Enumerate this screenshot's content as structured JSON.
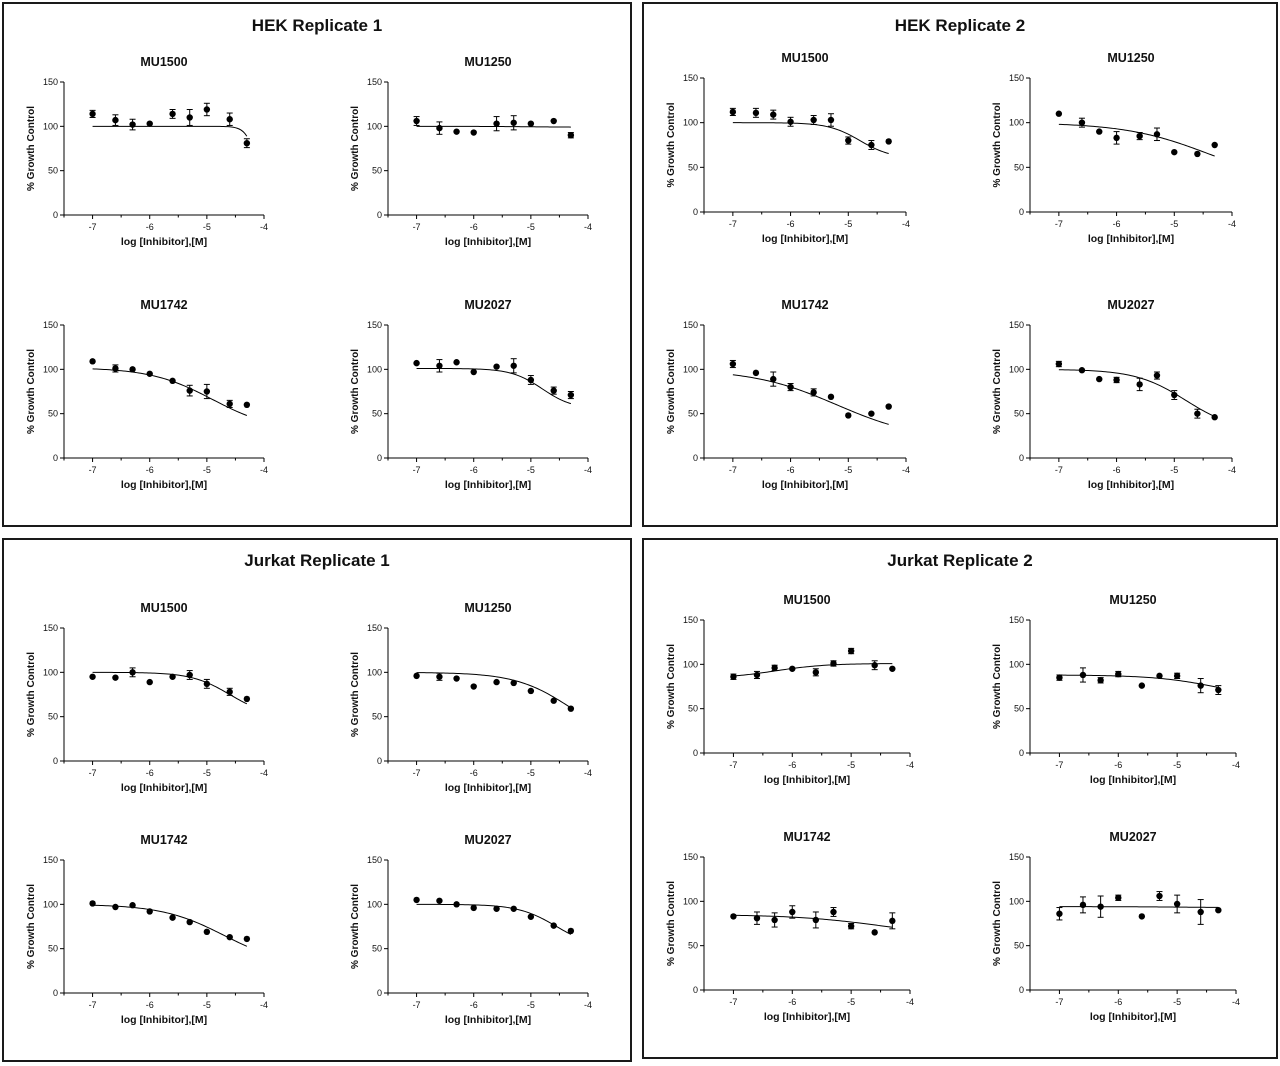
{
  "figure": {
    "background": "#ffffff",
    "line_color": "#000000"
  },
  "panels": [
    {
      "title": "HEK Replicate 1"
    },
    {
      "title": "HEK Replicate 2"
    },
    {
      "title": "Jurkat Replicate 1"
    },
    {
      "title": "Jurkat Replicate 2"
    }
  ],
  "chart_data": [
    {
      "panel": "HEK Replicate 1",
      "type": "scatter",
      "title": "MU1500",
      "xlabel": "log [Inhibitor],[M]",
      "ylabel": "% Growth Control",
      "xlim": [
        -7.5,
        -4
      ],
      "ylim": [
        0,
        150
      ],
      "xticks": [
        -7,
        -6,
        -5,
        -4
      ],
      "yticks": [
        0,
        50,
        100,
        150
      ],
      "x": [
        -7,
        -6.6,
        -6.3,
        -6,
        -5.6,
        -5.3,
        -5,
        -4.6,
        -4.3
      ],
      "y": [
        114,
        107,
        102,
        103,
        114,
        110,
        119,
        108,
        81
      ],
      "err": [
        4,
        6,
        6,
        2,
        5,
        9,
        7,
        7,
        5
      ],
      "fit": {
        "top": 100,
        "bottom": 0,
        "logIC50": -4.1,
        "hill": 4.5
      }
    },
    {
      "panel": "HEK Replicate 1",
      "type": "scatter",
      "title": "MU1250",
      "xlabel": "log [Inhibitor],[M]",
      "ylabel": "% Growth Control",
      "xlim": [
        -7.5,
        -4
      ],
      "ylim": [
        0,
        150
      ],
      "xticks": [
        -7,
        -6,
        -5,
        -4
      ],
      "yticks": [
        0,
        50,
        100,
        150
      ],
      "x": [
        -7,
        -6.6,
        -6.3,
        -6,
        -5.6,
        -5.3,
        -5,
        -4.6,
        -4.3
      ],
      "y": [
        106,
        98,
        94,
        93,
        103,
        104,
        103,
        106,
        90
      ],
      "err": [
        5,
        7,
        2,
        2,
        8,
        8,
        2,
        2,
        3
      ],
      "fit": {
        "top": 100,
        "bottom": 99,
        "logIC50": -5,
        "hill": 1
      }
    },
    {
      "panel": "HEK Replicate 1",
      "type": "scatter",
      "title": "MU1742",
      "xlabel": "log [Inhibitor],[M]",
      "ylabel": "% Growth Control",
      "xlim": [
        -7.5,
        -4
      ],
      "ylim": [
        0,
        150
      ],
      "xticks": [
        -7,
        -6,
        -5,
        -4
      ],
      "yticks": [
        0,
        50,
        100,
        150
      ],
      "x": [
        -7,
        -6.6,
        -6.3,
        -6,
        -5.6,
        -5.3,
        -5,
        -4.6,
        -4.3
      ],
      "y": [
        109,
        101,
        100,
        95,
        87,
        76,
        75,
        61,
        60
      ],
      "err": [
        2,
        4,
        2,
        2,
        2,
        6,
        8,
        4,
        2
      ],
      "fit": {
        "top": 102,
        "bottom": 30,
        "logIC50": -4.9,
        "hill": 0.8
      }
    },
    {
      "panel": "HEK Replicate 1",
      "type": "scatter",
      "title": "MU2027",
      "xlabel": "log [Inhibitor],[M]",
      "ylabel": "% Growth Control",
      "xlim": [
        -7.5,
        -4
      ],
      "ylim": [
        0,
        150
      ],
      "xticks": [
        -7,
        -6,
        -5,
        -4
      ],
      "yticks": [
        0,
        50,
        100,
        150
      ],
      "x": [
        -7,
        -6.6,
        -6.3,
        -6,
        -5.6,
        -5.3,
        -5,
        -4.6,
        -4.3
      ],
      "y": [
        107,
        104,
        108,
        97,
        103,
        104,
        88,
        76,
        71
      ],
      "err": [
        2,
        7,
        2,
        2,
        2,
        8,
        5,
        4,
        4
      ],
      "fit": {
        "top": 101,
        "bottom": 55,
        "logIC50": -4.8,
        "hill": 1.6
      }
    },
    {
      "panel": "HEK Replicate 2",
      "type": "scatter",
      "title": "MU1500",
      "xlabel": "log [Inhibitor],[M]",
      "ylabel": "% Growth Control",
      "xlim": [
        -7.5,
        -4
      ],
      "ylim": [
        0,
        150
      ],
      "xticks": [
        -7,
        -6,
        -5,
        -4
      ],
      "yticks": [
        0,
        50,
        100,
        150
      ],
      "x": [
        -7,
        -6.6,
        -6.3,
        -6,
        -5.6,
        -5.3,
        -5,
        -4.6,
        -4.3
      ],
      "y": [
        112,
        111,
        109,
        101,
        103,
        103,
        80,
        75,
        79
      ],
      "err": [
        4,
        5,
        5,
        5,
        5,
        7,
        4,
        5,
        2
      ],
      "fit": {
        "top": 100,
        "bottom": 60,
        "logIC50": -4.8,
        "hill": 1.6
      }
    },
    {
      "panel": "HEK Replicate 2",
      "type": "scatter",
      "title": "MU1250",
      "xlabel": "log [Inhibitor],[M]",
      "ylabel": "% Growth Control",
      "xlim": [
        -7.5,
        -4
      ],
      "ylim": [
        0,
        150
      ],
      "xticks": [
        -7,
        -6,
        -5,
        -4
      ],
      "yticks": [
        0,
        50,
        100,
        150
      ],
      "x": [
        -7,
        -6.6,
        -6.3,
        -6,
        -5.6,
        -5.3,
        -5,
        -4.6,
        -4.3
      ],
      "y": [
        110,
        100,
        90,
        83,
        85,
        87,
        67,
        65,
        75
      ],
      "err": [
        2,
        5,
        2,
        7,
        4,
        7,
        2,
        2,
        2
      ],
      "fit": {
        "top": 100,
        "bottom": 30,
        "logIC50": -4.4,
        "hill": 0.6
      }
    },
    {
      "panel": "HEK Replicate 2",
      "type": "scatter",
      "title": "MU1742",
      "xlabel": "log [Inhibitor],[M]",
      "ylabel": "% Growth Control",
      "xlim": [
        -7.5,
        -4
      ],
      "ylim": [
        0,
        150
      ],
      "xticks": [
        -7,
        -6,
        -5,
        -4
      ],
      "yticks": [
        0,
        50,
        100,
        150
      ],
      "x": [
        -7,
        -6.6,
        -6.3,
        -6,
        -5.6,
        -5.3,
        -5,
        -4.6,
        -4.3
      ],
      "y": [
        106,
        96,
        89,
        80,
        74,
        69,
        48,
        50,
        58
      ],
      "err": [
        4,
        2,
        8,
        4,
        4,
        2,
        2,
        2,
        2
      ],
      "fit": {
        "top": 100,
        "bottom": 20,
        "logIC50": -5.2,
        "hill": 0.6
      }
    },
    {
      "panel": "HEK Replicate 2",
      "type": "scatter",
      "title": "MU2027",
      "xlabel": "log [Inhibitor],[M]",
      "ylabel": "% Growth Control",
      "xlim": [
        -7.5,
        -4
      ],
      "ylim": [
        0,
        150
      ],
      "xticks": [
        -7,
        -6,
        -5,
        -4
      ],
      "yticks": [
        0,
        50,
        100,
        150
      ],
      "x": [
        -7,
        -6.6,
        -6.3,
        -6,
        -5.6,
        -5.3,
        -5,
        -4.6,
        -4.3
      ],
      "y": [
        106,
        99,
        89,
        88,
        83,
        93,
        71,
        50,
        46
      ],
      "err": [
        3,
        2,
        2,
        3,
        7,
        4,
        5,
        5,
        2
      ],
      "fit": {
        "top": 100,
        "bottom": 30,
        "logIC50": -4.8,
        "hill": 1
      }
    },
    {
      "panel": "Jurkat Replicate 1",
      "type": "scatter",
      "title": "MU1500",
      "xlabel": "log [Inhibitor],[M]",
      "ylabel": "% Growth Control",
      "xlim": [
        -7.5,
        -4
      ],
      "ylim": [
        0,
        150
      ],
      "xticks": [
        -7,
        -6,
        -5,
        -4
      ],
      "yticks": [
        0,
        50,
        100,
        150
      ],
      "x": [
        -7,
        -6.6,
        -6.3,
        -6,
        -5.6,
        -5.3,
        -5,
        -4.6,
        -4.3
      ],
      "y": [
        95,
        94,
        100,
        89,
        95,
        97,
        87,
        78,
        70
      ],
      "err": [
        2,
        2,
        5,
        2,
        2,
        5,
        5,
        4,
        2
      ],
      "fit": {
        "top": 100,
        "bottom": 50,
        "logIC50": -4.6,
        "hill": 1.3
      }
    },
    {
      "panel": "Jurkat Replicate 1",
      "type": "scatter",
      "title": "MU1250",
      "xlabel": "log [Inhibitor],[M]",
      "ylabel": "% Growth Control",
      "xlim": [
        -7.5,
        -4
      ],
      "ylim": [
        0,
        150
      ],
      "xticks": [
        -7,
        -6,
        -5,
        -4
      ],
      "yticks": [
        0,
        50,
        100,
        150
      ],
      "x": [
        -7,
        -6.6,
        -6.3,
        -6,
        -5.6,
        -5.3,
        -5,
        -4.6,
        -4.3
      ],
      "y": [
        96,
        95,
        93,
        84,
        89,
        88,
        79,
        68,
        59
      ],
      "err": [
        2,
        4,
        2,
        2,
        2,
        2,
        2,
        2,
        2
      ],
      "fit": {
        "top": 100,
        "bottom": 20,
        "logIC50": -4.3,
        "hill": 0.9
      }
    },
    {
      "panel": "Jurkat Replicate 1",
      "type": "scatter",
      "title": "MU1742",
      "xlabel": "log [Inhibitor],[M]",
      "ylabel": "% Growth Control",
      "xlim": [
        -7.5,
        -4
      ],
      "ylim": [
        0,
        150
      ],
      "xticks": [
        -7,
        -6,
        -5,
        -4
      ],
      "yticks": [
        0,
        50,
        100,
        150
      ],
      "x": [
        -7,
        -6.6,
        -6.3,
        -6,
        -5.6,
        -5.3,
        -5,
        -4.6,
        -4.3
      ],
      "y": [
        101,
        97,
        99,
        92,
        85,
        80,
        69,
        63,
        61
      ],
      "err": [
        2,
        2,
        2,
        2,
        2,
        2,
        2,
        2,
        2
      ],
      "fit": {
        "top": 100,
        "bottom": 30,
        "logIC50": -4.7,
        "hill": 0.8
      }
    },
    {
      "panel": "Jurkat Replicate 1",
      "type": "scatter",
      "title": "MU2027",
      "xlabel": "log [Inhibitor],[M]",
      "ylabel": "% Growth Control",
      "xlim": [
        -7.5,
        -4
      ],
      "ylim": [
        0,
        150
      ],
      "xticks": [
        -7,
        -6,
        -5,
        -4
      ],
      "yticks": [
        0,
        50,
        100,
        150
      ],
      "x": [
        -7,
        -6.6,
        -6.3,
        -6,
        -5.6,
        -5.3,
        -5,
        -4.6,
        -4.3
      ],
      "y": [
        105,
        104,
        100,
        96,
        95,
        95,
        86,
        76,
        70
      ],
      "err": [
        2,
        2,
        2,
        2,
        2,
        2,
        2,
        2,
        2
      ],
      "fit": {
        "top": 100,
        "bottom": 50,
        "logIC50": -4.55,
        "hill": 1.3
      }
    },
    {
      "panel": "Jurkat Replicate 2",
      "type": "scatter",
      "title": "MU1500",
      "xlabel": "log [Inhibitor],[M]",
      "ylabel": "% Growth Control",
      "xlim": [
        -7.5,
        -4
      ],
      "ylim": [
        0,
        150
      ],
      "xticks": [
        -7,
        -6,
        -5,
        -4
      ],
      "yticks": [
        0,
        50,
        100,
        150
      ],
      "x": [
        -7,
        -6.6,
        -6.3,
        -6,
        -5.6,
        -5.3,
        -5,
        -4.6,
        -4.3
      ],
      "y": [
        86,
        88,
        96,
        95,
        91,
        101,
        115,
        99,
        95
      ],
      "err": [
        3,
        4,
        3,
        2,
        4,
        3,
        3,
        5,
        2
      ],
      "fit": {
        "top": 101,
        "bottom": 84,
        "logIC50": -6.3,
        "hill": -1
      }
    },
    {
      "panel": "Jurkat Replicate 2",
      "type": "scatter",
      "title": "MU1250",
      "xlabel": "log [Inhibitor],[M]",
      "ylabel": "% Growth Control",
      "xlim": [
        -7.5,
        -4
      ],
      "ylim": [
        0,
        150
      ],
      "xticks": [
        -7,
        -6,
        -5,
        -4
      ],
      "yticks": [
        0,
        50,
        100,
        150
      ],
      "x": [
        -7,
        -6.6,
        -6.3,
        -6,
        -5.6,
        -5.3,
        -5,
        -4.6,
        -4.3
      ],
      "y": [
        85,
        88,
        82,
        89,
        76,
        87,
        87,
        76,
        71
      ],
      "err": [
        3,
        8,
        3,
        3,
        2,
        2,
        3,
        8,
        5
      ],
      "fit": {
        "top": 88,
        "bottom": 60,
        "logIC50": -4.3,
        "hill": 0.8
      }
    },
    {
      "panel": "Jurkat Replicate 2",
      "type": "scatter",
      "title": "MU1742",
      "xlabel": "log [Inhibitor],[M]",
      "ylabel": "% Growth Control",
      "xlim": [
        -7.5,
        -4
      ],
      "ylim": [
        0,
        150
      ],
      "xticks": [
        -7,
        -6,
        -5,
        -4
      ],
      "yticks": [
        0,
        50,
        100,
        150
      ],
      "x": [
        -7,
        -6.6,
        -6.3,
        -6,
        -5.6,
        -5.3,
        -5,
        -4.6,
        -4.3
      ],
      "y": [
        83,
        81,
        79,
        88,
        79,
        88,
        72,
        65,
        78
      ],
      "err": [
        2,
        7,
        8,
        7,
        9,
        5,
        3,
        2,
        9
      ],
      "fit": {
        "top": 85,
        "bottom": 60,
        "logIC50": -4.5,
        "hill": 0.6
      }
    },
    {
      "panel": "Jurkat Replicate 2",
      "type": "scatter",
      "title": "MU2027",
      "xlabel": "log [Inhibitor],[M]",
      "ylabel": "% Growth Control",
      "xlim": [
        -7.5,
        -4
      ],
      "ylim": [
        0,
        150
      ],
      "xticks": [
        -7,
        -6,
        -5,
        -4
      ],
      "yticks": [
        0,
        50,
        100,
        150
      ],
      "x": [
        -7,
        -6.6,
        -6.3,
        -6,
        -5.6,
        -5.3,
        -5,
        -4.6,
        -4.3
      ],
      "y": [
        86,
        96,
        94,
        104,
        83,
        106,
        97,
        88,
        90
      ],
      "err": [
        7,
        9,
        12,
        3,
        2,
        5,
        10,
        14,
        2
      ],
      "fit": {
        "top": 94,
        "bottom": 93,
        "logIC50": -5,
        "hill": 1
      }
    }
  ]
}
